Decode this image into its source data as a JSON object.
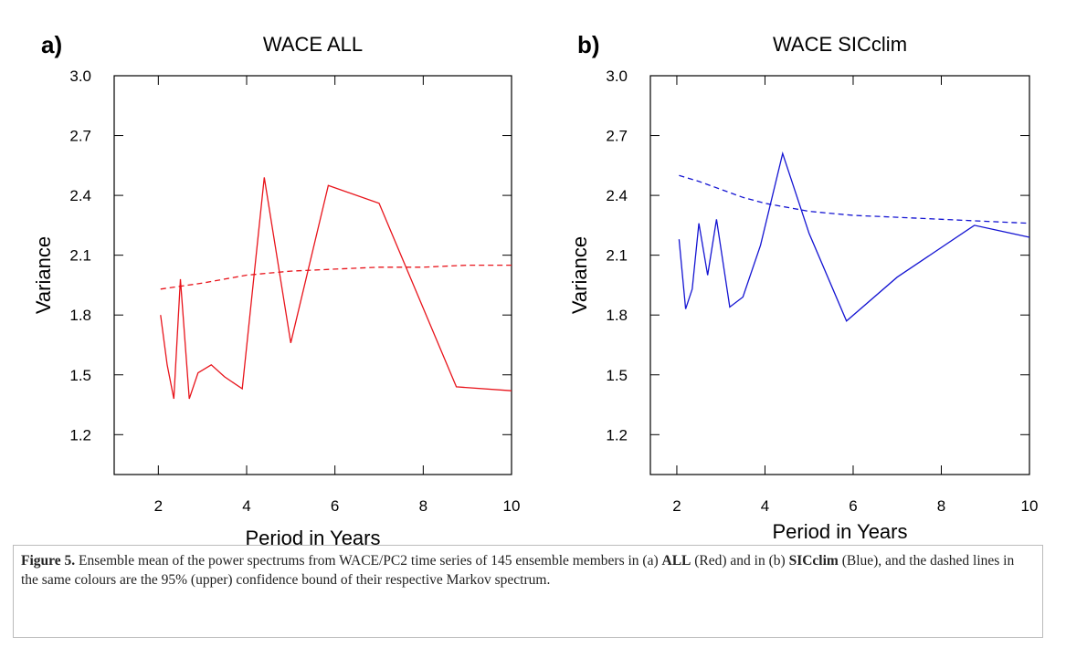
{
  "chart_data": [
    {
      "type": "line",
      "label": "a)",
      "title": "WACE ALL",
      "xlabel": "Period in Years",
      "ylabel": "Variance",
      "xlim": [
        1,
        10
      ],
      "ylim": [
        1,
        3
      ],
      "xticks": [
        2,
        4,
        6,
        8,
        10
      ],
      "yticks": [
        1.2,
        1.5,
        1.8,
        2.1,
        2.4,
        2.7,
        {
          "value": 3,
          "label": "3.0"
        }
      ],
      "series": [
        {
          "color": "#e8141b",
          "style": "solid",
          "x": [
            2.05,
            2.2,
            2.35,
            2.5,
            2.7,
            2.9,
            3.2,
            3.5,
            3.9,
            4.4,
            5.0,
            5.85,
            7.0,
            8.75,
            10
          ],
          "values": [
            1.8,
            1.55,
            1.38,
            1.98,
            1.38,
            1.51,
            1.55,
            1.49,
            1.43,
            2.49,
            1.66,
            2.45,
            2.36,
            1.44,
            1.42
          ]
        },
        {
          "color": "#e8141b",
          "style": "dashed",
          "x": [
            2.05,
            3,
            4,
            5,
            6,
            7,
            8,
            9,
            10
          ],
          "values": [
            1.93,
            1.96,
            2.0,
            2.02,
            2.03,
            2.04,
            2.04,
            2.05,
            2.05
          ]
        }
      ]
    },
    {
      "type": "line",
      "label": "b)",
      "title": "WACE SICclim",
      "xlabel": "Period in Years",
      "ylabel": "Variance",
      "xlim": [
        1.4,
        10
      ],
      "ylim": [
        1,
        3
      ],
      "xticks": [
        2,
        4,
        6,
        8,
        10
      ],
      "yticks": [
        1.2,
        1.5,
        1.8,
        2.1,
        2.4,
        2.7,
        {
          "value": 3,
          "label": "3.0"
        }
      ],
      "series": [
        {
          "color": "#1414d2",
          "style": "solid",
          "x": [
            2.05,
            2.2,
            2.35,
            2.5,
            2.7,
            2.9,
            3.2,
            3.5,
            3.9,
            4.4,
            5.0,
            5.85,
            7.0,
            8.75,
            10
          ],
          "values": [
            2.18,
            1.83,
            1.93,
            2.26,
            2.0,
            2.28,
            1.84,
            1.89,
            2.15,
            2.61,
            2.21,
            1.77,
            1.99,
            2.25,
            2.19
          ]
        },
        {
          "color": "#1414d2",
          "style": "dashed",
          "x": [
            2.05,
            2.5,
            3,
            3.5,
            4,
            5,
            6,
            7,
            8,
            9,
            10
          ],
          "values": [
            2.5,
            2.47,
            2.43,
            2.39,
            2.36,
            2.32,
            2.3,
            2.29,
            2.28,
            2.27,
            2.26
          ]
        }
      ]
    }
  ],
  "caption": {
    "runs": [
      "Figure 5.",
      " Ensemble mean of the power spectrums from WACE/PC2 time series of 145 ensemble members in (a) ",
      "ALL",
      " (Red) and in (b) ",
      "SICclim",
      " (Blue), and the dashed lines in the same colours are the 95% (upper) confidence bound of their respective Markov spectrum."
    ]
  }
}
